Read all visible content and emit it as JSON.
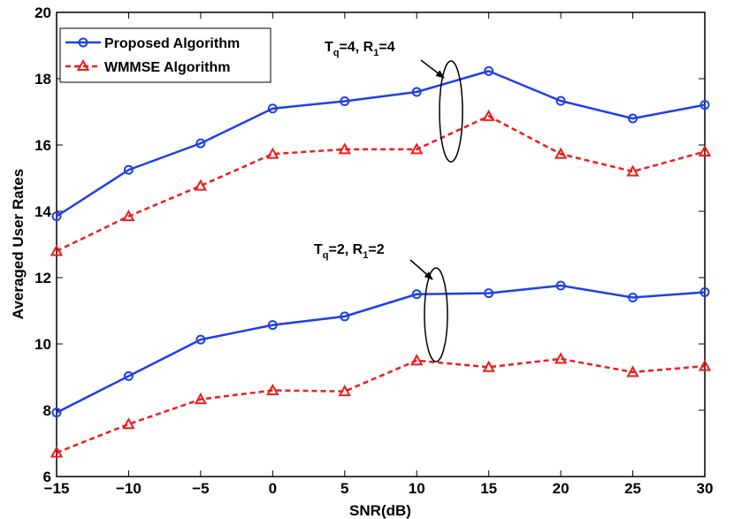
{
  "chart_data": {
    "type": "line",
    "title": "",
    "xlabel": "SNR(dB)",
    "ylabel": "Averaged User Rates",
    "xlim": [
      -15,
      30
    ],
    "ylim": [
      6,
      20
    ],
    "grid": false,
    "legend_position": "top-left",
    "x": [
      -15,
      -10,
      -5,
      0,
      5,
      10,
      15,
      20,
      25,
      30
    ],
    "x_tick_labels": [
      "−15",
      "−10",
      "−5",
      "0",
      "5",
      "10",
      "15",
      "20",
      "25",
      "30"
    ],
    "y_ticks": [
      6,
      8,
      10,
      12,
      14,
      16,
      18,
      20
    ],
    "y_tick_labels": [
      "6",
      "8",
      "10",
      "12",
      "14",
      "16",
      "18",
      "20"
    ],
    "series": [
      {
        "name": "Proposed Algorithm",
        "group": "Tq=4, R1=4",
        "color": "#1f3fe8",
        "style": "solid",
        "marker": "circle",
        "values": [
          13.85,
          15.25,
          16.05,
          17.1,
          17.32,
          17.6,
          18.23,
          17.33,
          16.8,
          17.21
        ]
      },
      {
        "name": "WMMSE Algorithm",
        "group": "Tq=4, R1=4",
        "color": "#ee1c1c",
        "style": "dashed",
        "marker": "triangle",
        "values": [
          12.8,
          13.85,
          14.77,
          15.73,
          15.87,
          15.87,
          16.87,
          15.73,
          15.2,
          15.8
        ]
      },
      {
        "name": "Proposed Algorithm",
        "group": "Tq=2, R1=2",
        "color": "#1f3fe8",
        "style": "solid",
        "marker": "circle",
        "values": [
          7.93,
          9.03,
          10.13,
          10.57,
          10.83,
          11.5,
          11.53,
          11.76,
          11.4,
          11.56
        ]
      },
      {
        "name": "WMMSE Algorithm",
        "group": "Tq=2, R1=2",
        "color": "#ee1c1c",
        "style": "dashed",
        "marker": "triangle",
        "values": [
          6.72,
          7.58,
          8.33,
          8.6,
          8.57,
          9.5,
          9.3,
          9.55,
          9.15,
          9.33
        ]
      }
    ],
    "legend": [
      {
        "label": "Proposed Algorithm",
        "color": "#1f3fe8",
        "style": "solid",
        "marker": "circle"
      },
      {
        "label": "WMMSE Algorithm",
        "color": "#ee1c1c",
        "style": "dashed",
        "marker": "triangle"
      }
    ],
    "annotations": [
      {
        "id": "ann1",
        "T_sub": "q",
        "T_val": "=4, ",
        "R_sub": "1",
        "R_val": "=4",
        "ellipse_center": {
          "x": 12.5,
          "y": 17.2
        }
      },
      {
        "id": "ann2",
        "T_sub": "q",
        "T_val": "=2, ",
        "R_sub": "1",
        "R_val": "=2",
        "ellipse_center": {
          "x": 11.5,
          "y": 10.4
        }
      }
    ]
  }
}
